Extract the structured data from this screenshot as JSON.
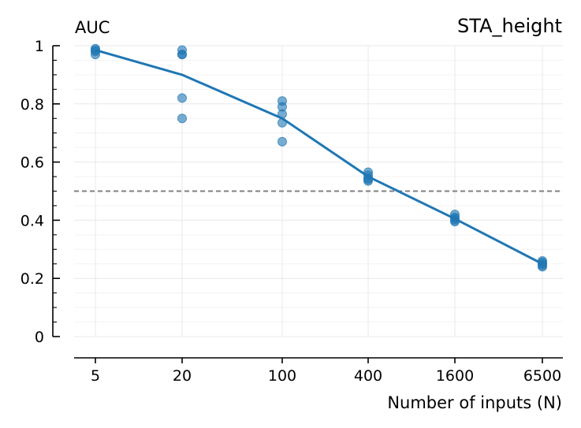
{
  "chart_data": {
    "type": "line",
    "title": "STA_height",
    "ylabel": "AUC",
    "xlabel": "Number of inputs (N)",
    "x_tick_labels": [
      "5",
      "20",
      "100",
      "400",
      "1600",
      "6500"
    ],
    "y_tick_labels": [
      "0",
      "0.2",
      "0.4",
      "0.6",
      "0.8",
      "1"
    ],
    "ylim": [
      0,
      1
    ],
    "x_scale": "log",
    "grid": true,
    "series": [
      {
        "values": [
          0.985,
          0.9,
          0.75,
          0.55,
          0.405,
          0.25
        ]
      }
    ],
    "scatter_points": [
      [
        0.99,
        0.985,
        0.98,
        0.97
      ],
      [
        0.985,
        0.97,
        0.97,
        0.82,
        0.75
      ],
      [
        0.81,
        0.79,
        0.765,
        0.735,
        0.67
      ],
      [
        0.565,
        0.555,
        0.545,
        0.54,
        0.535
      ],
      [
        0.42,
        0.41,
        0.405,
        0.4,
        0.395
      ],
      [
        0.26,
        0.255,
        0.25,
        0.245,
        0.24
      ]
    ],
    "reference_line": {
      "y": 0.5,
      "style": "dashed"
    },
    "colors": {
      "series": "#1f77b4",
      "points": "#1f77b4",
      "reference": "#808080",
      "grid": "#e8e8e8",
      "axis": "#000000"
    }
  }
}
